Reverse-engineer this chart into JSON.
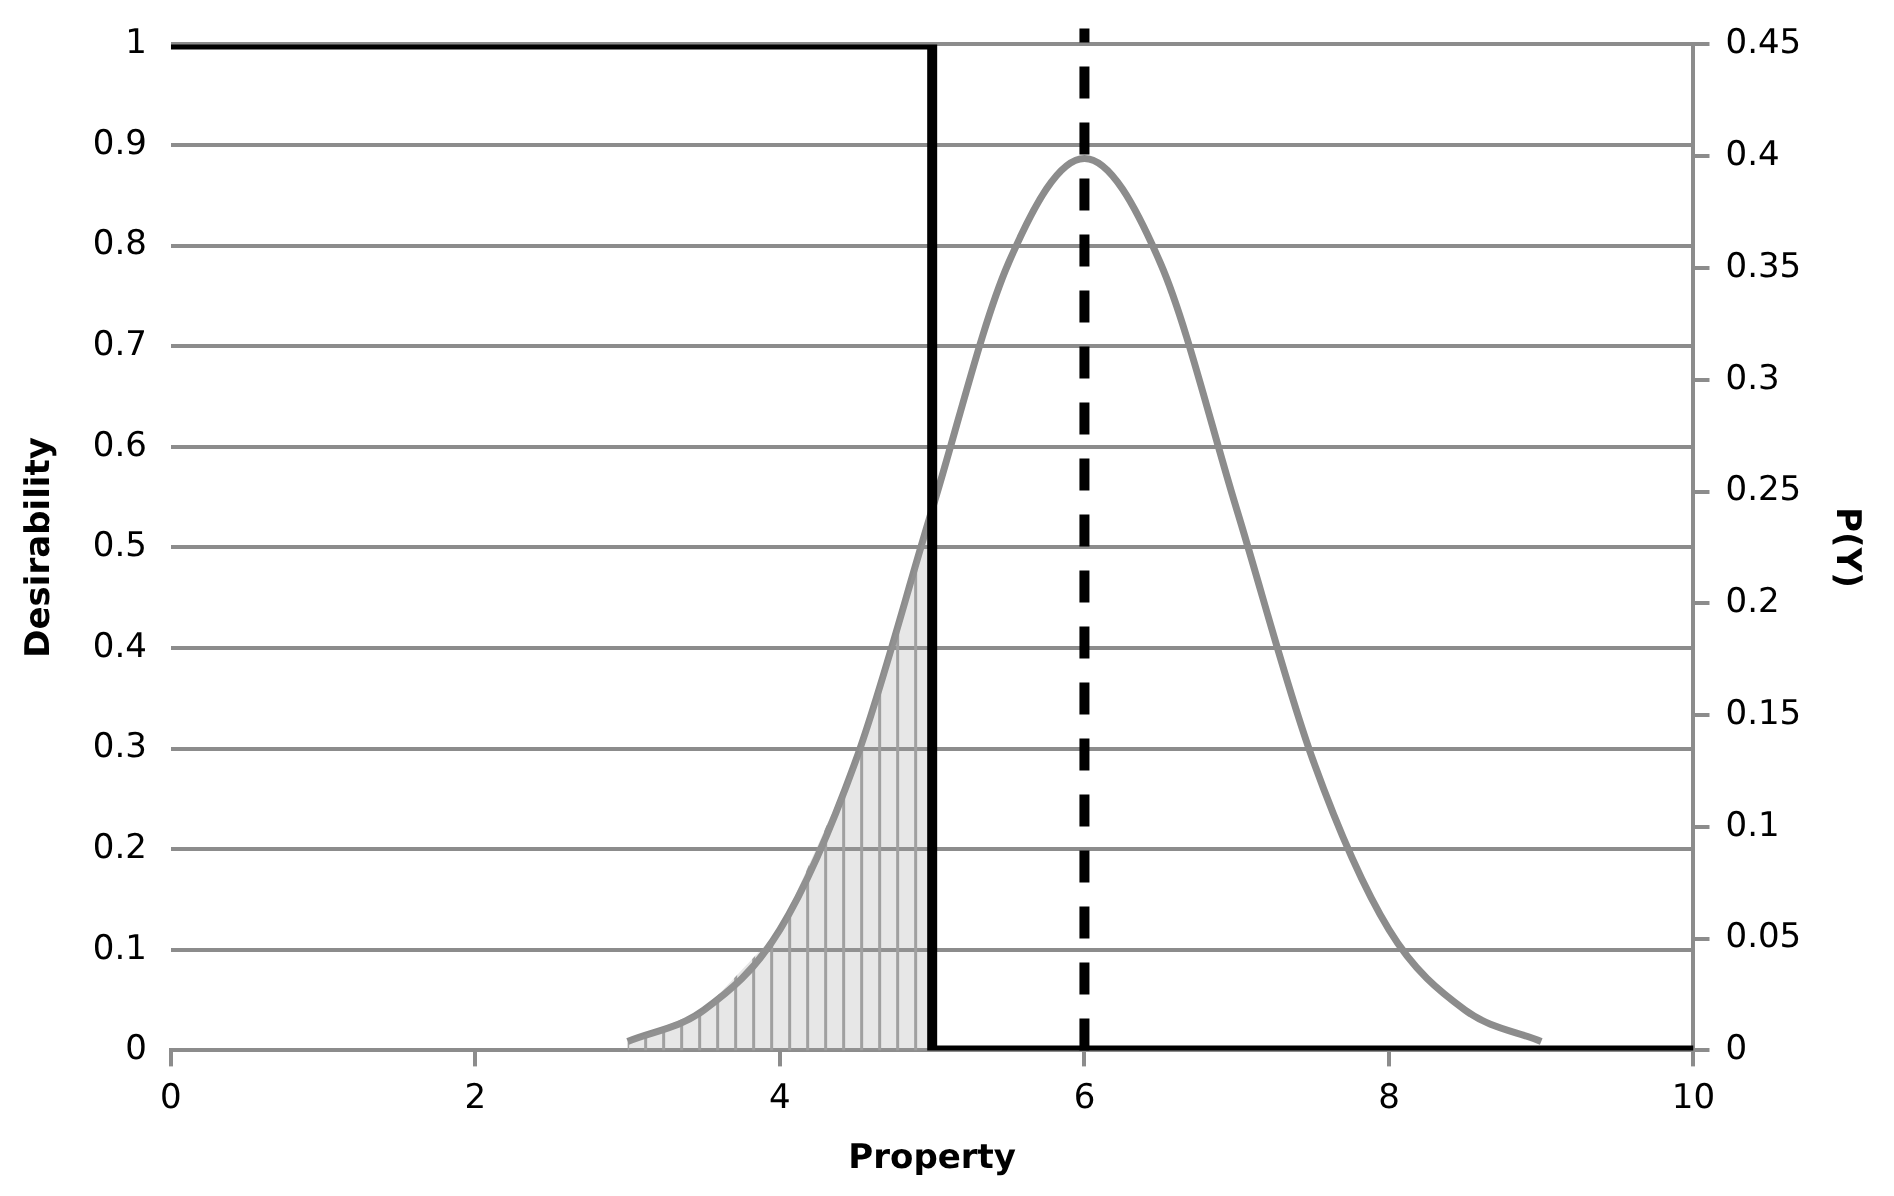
{
  "chart_data": {
    "type": "line",
    "xlabel": "Property",
    "ylabel": "Desirability",
    "y2label": "P(Y)",
    "xlim": [
      0,
      10
    ],
    "xticks": [
      0,
      2,
      4,
      6,
      8,
      10
    ],
    "ylim": [
      0,
      1
    ],
    "yticks": [
      0,
      0.1,
      0.2,
      0.3,
      0.4,
      0.5,
      0.6,
      0.7,
      0.8,
      0.9,
      1
    ],
    "y2lim": [
      0,
      0.45
    ],
    "y2ticks": [
      0,
      0.05,
      0.1,
      0.15,
      0.2,
      0.25,
      0.3,
      0.35,
      0.4,
      0.45
    ],
    "grid": "y",
    "marker": "none",
    "series": [
      {
        "type": "step",
        "color": "#000000",
        "x": [
          0,
          5,
          10
        ],
        "values": [
          1,
          0,
          0
        ]
      },
      {
        "type": "area",
        "axis": "y2",
        "color": "#a0a0a0",
        "x": [
          3,
          3.5,
          4,
          4.5,
          5
        ],
        "values": [
          0.004,
          0.018,
          0.054,
          0.13,
          0.242
        ]
      },
      {
        "type": "line",
        "axis": "y2",
        "color": "#8c8c8c",
        "x": [
          3,
          3.5,
          4,
          4.5,
          5,
          5.5,
          6,
          6.5,
          7,
          7.5,
          8,
          8.5,
          9
        ],
        "values": [
          0.004,
          0.018,
          0.054,
          0.13,
          0.242,
          0.352,
          0.399,
          0.352,
          0.242,
          0.13,
          0.054,
          0.018,
          0.004
        ]
      }
    ],
    "ref_lines": [
      {
        "axis": "x",
        "value": 6,
        "color": "#000000",
        "line_style": "dashed"
      }
    ]
  }
}
